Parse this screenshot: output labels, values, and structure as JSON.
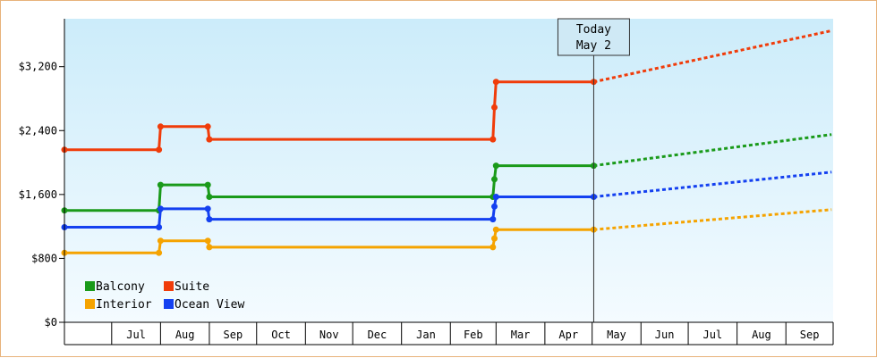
{
  "chart_data": {
    "type": "line",
    "title": "",
    "xlabel": "",
    "ylabel": "",
    "ylim": [
      0,
      3800
    ],
    "y_ticks": [
      0,
      800,
      1600,
      2400,
      3200
    ],
    "y_tick_labels": [
      "$0",
      "$800",
      "$1,600",
      "$2,400",
      "$3,200"
    ],
    "x_range": [
      "2023-06-01",
      "2024-09-30"
    ],
    "x_tick_labels": [
      "Jul",
      "Aug",
      "Sep",
      "Oct",
      "Nov",
      "Dec",
      "Jan",
      "Feb",
      "Mar",
      "Apr",
      "May",
      "Jun",
      "Jul",
      "Aug",
      "Sep"
    ],
    "month_starts": [
      "2023-06-01",
      "2023-07-01",
      "2023-08-01",
      "2023-09-01",
      "2023-10-01",
      "2023-11-01",
      "2023-12-01",
      "2024-01-01",
      "2024-02-01",
      "2024-03-01",
      "2024-04-01",
      "2024-05-01",
      "2024-06-01",
      "2024-07-01",
      "2024-08-01",
      "2024-09-01",
      "2024-10-01"
    ],
    "today": {
      "date": "2024-05-02",
      "label_line1": "Today",
      "label_line2": "May 2"
    },
    "grid": false,
    "legend_position": "bottom-left",
    "series": [
      {
        "name": "Balcony",
        "color": "#1a9a1a",
        "history": [
          [
            "2023-06-01",
            1400
          ],
          [
            "2023-07-31",
            1400
          ],
          [
            "2023-07-31",
            1400
          ],
          [
            "2023-08-01",
            1720
          ],
          [
            "2023-08-31",
            1720
          ],
          [
            "2023-09-01",
            1570
          ],
          [
            "2024-02-28",
            1570
          ],
          [
            "2024-02-29",
            1790
          ],
          [
            "2024-03-01",
            1960
          ],
          [
            "2024-05-02",
            1960
          ]
        ],
        "forecast": [
          [
            "2024-05-02",
            1960
          ],
          [
            "2024-09-30",
            2350
          ]
        ]
      },
      {
        "name": "Suite",
        "color": "#f03c0a",
        "history": [
          [
            "2023-06-01",
            2160
          ],
          [
            "2023-07-31",
            2160
          ],
          [
            "2023-08-01",
            2450
          ],
          [
            "2023-08-31",
            2450
          ],
          [
            "2023-09-01",
            2290
          ],
          [
            "2024-02-28",
            2290
          ],
          [
            "2024-02-29",
            2690
          ],
          [
            "2024-03-01",
            3010
          ],
          [
            "2024-05-02",
            3010
          ]
        ],
        "forecast": [
          [
            "2024-05-02",
            3010
          ],
          [
            "2024-09-30",
            3650
          ]
        ]
      },
      {
        "name": "Interior",
        "color": "#f5a300",
        "history": [
          [
            "2023-06-01",
            870
          ],
          [
            "2023-07-31",
            870
          ],
          [
            "2023-08-01",
            1020
          ],
          [
            "2023-08-31",
            1020
          ],
          [
            "2023-09-01",
            940
          ],
          [
            "2024-02-28",
            940
          ],
          [
            "2024-02-29",
            1050
          ],
          [
            "2024-03-01",
            1160
          ],
          [
            "2024-05-02",
            1160
          ]
        ],
        "forecast": [
          [
            "2024-05-02",
            1160
          ],
          [
            "2024-09-30",
            1410
          ]
        ]
      },
      {
        "name": "Ocean View",
        "color": "#1440f0",
        "history": [
          [
            "2023-06-01",
            1190
          ],
          [
            "2023-07-31",
            1190
          ],
          [
            "2023-08-01",
            1420
          ],
          [
            "2023-08-31",
            1420
          ],
          [
            "2023-09-01",
            1290
          ],
          [
            "2024-02-28",
            1290
          ],
          [
            "2024-02-29",
            1450
          ],
          [
            "2024-03-01",
            1570
          ],
          [
            "2024-05-02",
            1570
          ]
        ],
        "forecast": [
          [
            "2024-05-02",
            1570
          ],
          [
            "2024-09-30",
            1880
          ]
        ]
      }
    ],
    "legend_rows": [
      [
        "Balcony",
        "Suite"
      ],
      [
        "Interior",
        "Ocean View"
      ]
    ]
  }
}
